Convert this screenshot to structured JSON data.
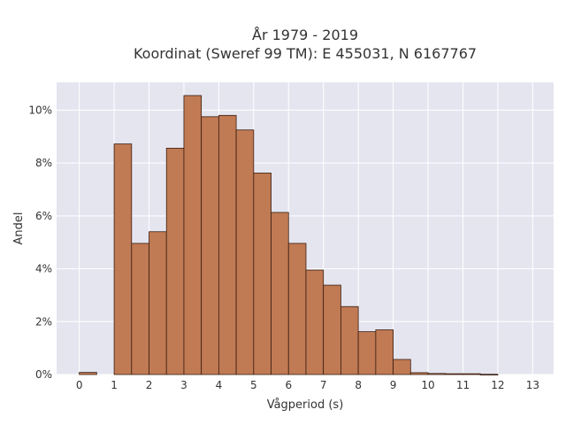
{
  "chart_data": {
    "type": "bar",
    "title_line1": "År 1979 - 2019",
    "title_line2": "Koordinat (Sweref 99 TM): E 455031, N 6167767",
    "xlabel": "Vågperiod (s)",
    "ylabel": "Andel",
    "bin_width": 0.5,
    "bins": [
      {
        "start": 0.0,
        "value": 0.08
      },
      {
        "start": 0.5,
        "value": 0.0
      },
      {
        "start": 1.0,
        "value": 8.72
      },
      {
        "start": 1.5,
        "value": 4.96
      },
      {
        "start": 2.0,
        "value": 5.4
      },
      {
        "start": 2.5,
        "value": 8.56
      },
      {
        "start": 3.0,
        "value": 10.55
      },
      {
        "start": 3.5,
        "value": 9.75
      },
      {
        "start": 4.0,
        "value": 9.8
      },
      {
        "start": 4.5,
        "value": 9.25
      },
      {
        "start": 5.0,
        "value": 7.62
      },
      {
        "start": 5.5,
        "value": 6.13
      },
      {
        "start": 6.0,
        "value": 4.96
      },
      {
        "start": 6.5,
        "value": 3.95
      },
      {
        "start": 7.0,
        "value": 3.38
      },
      {
        "start": 7.5,
        "value": 2.57
      },
      {
        "start": 8.0,
        "value": 1.62
      },
      {
        "start": 8.5,
        "value": 1.69
      },
      {
        "start": 9.0,
        "value": 0.57
      },
      {
        "start": 9.5,
        "value": 0.07
      },
      {
        "start": 10.0,
        "value": 0.04
      },
      {
        "start": 10.5,
        "value": 0.03
      },
      {
        "start": 11.0,
        "value": 0.03
      },
      {
        "start": 11.5,
        "value": 0.01
      },
      {
        "start": 12.0,
        "value": 0.0
      },
      {
        "start": 12.5,
        "value": 0.0
      }
    ],
    "xlim": [
      -0.65,
      13.6
    ],
    "ylim": [
      0,
      11.05
    ],
    "xticks": [
      0,
      1,
      2,
      3,
      4,
      5,
      6,
      7,
      8,
      9,
      10,
      11,
      12,
      13
    ],
    "xtick_labels": [
      "0",
      "1",
      "2",
      "3",
      "4",
      "5",
      "6",
      "7",
      "8",
      "9",
      "10",
      "11",
      "12",
      "13"
    ],
    "yticks": [
      0,
      2,
      4,
      6,
      8,
      10
    ],
    "ytick_labels": [
      "0%",
      "2%",
      "4%",
      "6%",
      "8%",
      "10%"
    ],
    "grid": true,
    "colors": {
      "bar_fill": "#c07a54",
      "bar_edge": "#3a1e10",
      "plot_bg": "#e5e5f0",
      "grid": "#ffffff"
    }
  }
}
